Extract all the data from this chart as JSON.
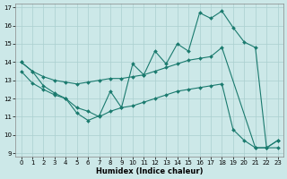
{
  "xlabel": "Humidex (Indice chaleur)",
  "bg_color": "#cce8e8",
  "grid_color": "#aacfcf",
  "line_color": "#1a7a6e",
  "xlim": [
    -0.5,
    23.5
  ],
  "ylim": [
    8.8,
    17.2
  ],
  "yticks": [
    9,
    10,
    11,
    12,
    13,
    14,
    15,
    16,
    17
  ],
  "xticks": [
    0,
    1,
    2,
    3,
    4,
    5,
    6,
    7,
    8,
    9,
    10,
    11,
    12,
    13,
    14,
    15,
    16,
    17,
    18,
    19,
    20,
    21,
    22,
    23
  ],
  "line_zigzag_x": [
    0,
    1,
    2,
    3,
    4,
    5,
    6,
    7,
    8,
    9,
    10,
    11,
    12,
    13,
    14,
    15,
    16,
    17,
    18,
    19,
    20,
    21,
    22,
    23
  ],
  "line_zigzag_y": [
    14.0,
    13.5,
    12.7,
    12.3,
    12.0,
    11.2,
    10.8,
    11.05,
    12.4,
    11.5,
    13.9,
    13.3,
    14.6,
    13.9,
    15.0,
    14.6,
    16.7,
    16.4,
    16.8,
    15.9,
    15.1,
    14.8,
    9.3,
    9.7
  ],
  "line_increase_x": [
    0,
    1,
    2,
    3,
    4,
    5,
    6,
    7,
    8,
    9,
    10,
    11,
    12,
    13,
    14,
    15,
    16,
    17,
    18,
    21,
    22,
    23
  ],
  "line_increase_y": [
    14.0,
    13.5,
    13.2,
    13.0,
    12.9,
    12.8,
    12.9,
    13.0,
    13.1,
    13.1,
    13.2,
    13.3,
    13.5,
    13.7,
    13.9,
    14.1,
    14.2,
    14.3,
    14.8,
    9.3,
    9.3,
    9.7
  ],
  "line_decrease_x": [
    0,
    1,
    2,
    3,
    4,
    5,
    6,
    7,
    8,
    9,
    10,
    11,
    12,
    13,
    14,
    15,
    16,
    17,
    18,
    19,
    20,
    21,
    22,
    23
  ],
  "line_decrease_y": [
    13.5,
    12.85,
    12.5,
    12.2,
    12.0,
    11.5,
    11.3,
    11.0,
    11.3,
    11.5,
    11.6,
    11.8,
    12.0,
    12.2,
    12.4,
    12.5,
    12.6,
    12.7,
    12.8,
    10.3,
    9.7,
    9.3,
    9.3,
    9.3
  ]
}
